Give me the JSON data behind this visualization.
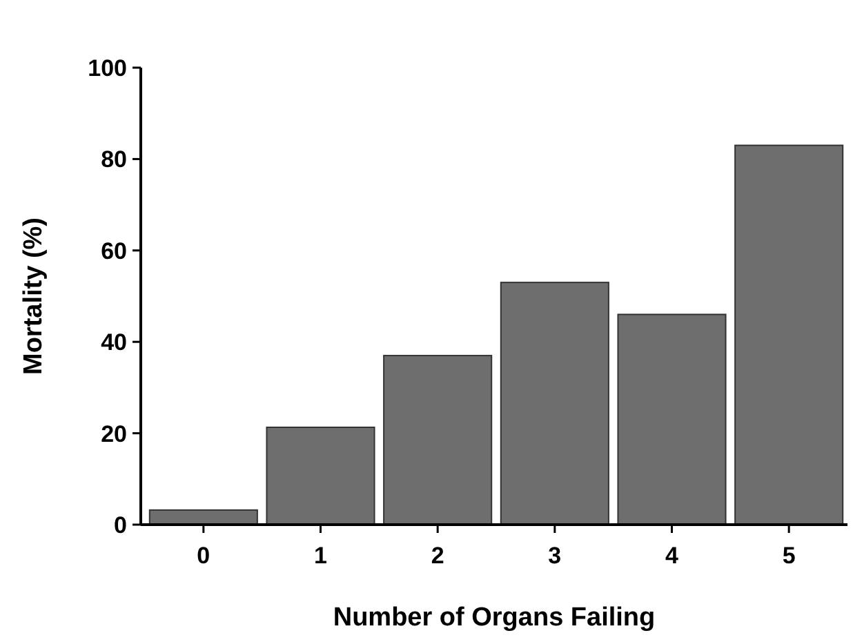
{
  "chart_data": {
    "type": "bar",
    "xlabel": "Number of Organs Failing",
    "ylabel": "Mortality (%)",
    "categories": [
      "0",
      "1",
      "2",
      "3",
      "4",
      "5"
    ],
    "values": [
      3.2,
      21.3,
      37,
      53,
      46,
      83
    ],
    "color": "#6e6e6e",
    "ylim": [
      0,
      100
    ],
    "yticks": [
      0,
      20,
      40,
      60,
      80,
      100
    ],
    "grid": false
  }
}
